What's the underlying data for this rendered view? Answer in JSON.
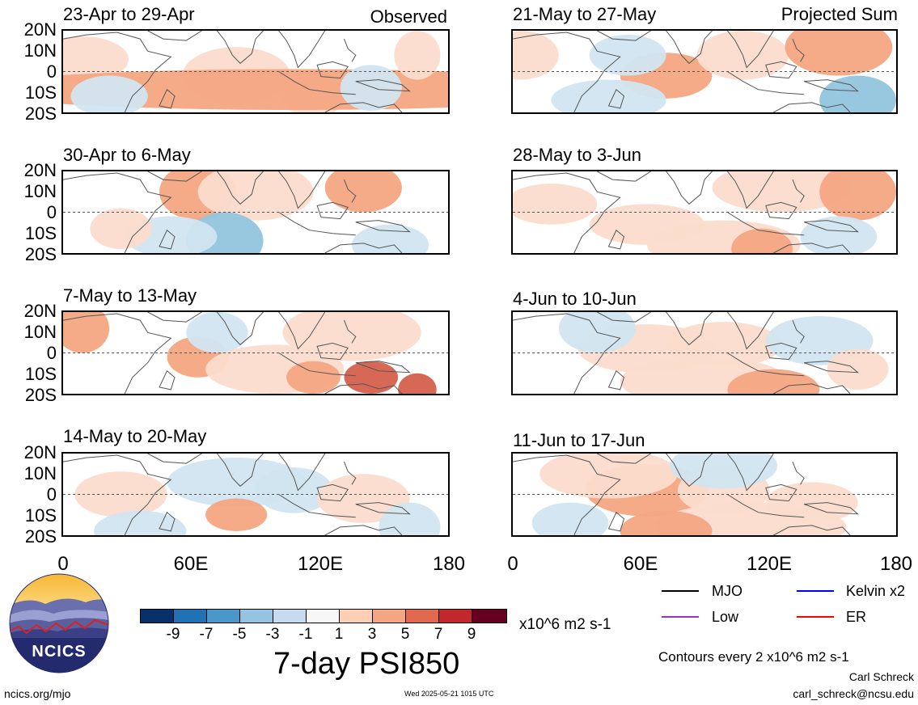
{
  "panels": [
    {
      "title": "23-Apr to 29-Apr",
      "tag": "Observed",
      "pattern": [
        [
          0.05,
          0.35,
          0.12,
          0.28,
          "p1"
        ],
        [
          0.45,
          0.55,
          0.14,
          0.35,
          "p1"
        ],
        [
          0.65,
          0.78,
          0.08,
          0.3,
          "p1"
        ],
        [
          0.6,
          0.72,
          0.85,
          0.25,
          "p2"
        ],
        [
          0.8,
          0.7,
          0.08,
          0.28,
          "n1"
        ],
        [
          0.92,
          0.3,
          0.06,
          0.3,
          "p1"
        ],
        [
          0.12,
          0.8,
          0.1,
          0.25,
          "n1"
        ]
      ]
    },
    {
      "title": "21-May to 27-May",
      "tag": "Projected Sum",
      "pattern": [
        [
          0.02,
          0.3,
          0.1,
          0.3,
          "p1"
        ],
        [
          0.4,
          0.55,
          0.12,
          0.28,
          "p2"
        ],
        [
          0.6,
          0.3,
          0.12,
          0.3,
          "p1"
        ],
        [
          0.3,
          0.3,
          0.1,
          0.25,
          "n1"
        ],
        [
          0.9,
          0.85,
          0.1,
          0.3,
          "n2"
        ],
        [
          0.85,
          0.2,
          0.14,
          0.35,
          "p2"
        ],
        [
          0.25,
          0.85,
          0.15,
          0.25,
          "n1"
        ]
      ]
    },
    {
      "title": "30-Apr to 6-May",
      "tag": "",
      "pattern": [
        [
          0.35,
          0.25,
          0.1,
          0.35,
          "p2"
        ],
        [
          0.78,
          0.2,
          0.1,
          0.3,
          "p2"
        ],
        [
          0.5,
          0.25,
          0.15,
          0.35,
          "p1"
        ],
        [
          0.42,
          0.85,
          0.1,
          0.35,
          "n2"
        ],
        [
          0.28,
          0.8,
          0.12,
          0.25,
          "n1"
        ],
        [
          0.85,
          0.9,
          0.1,
          0.25,
          "n1"
        ],
        [
          0.15,
          0.7,
          0.08,
          0.25,
          "p1"
        ]
      ]
    },
    {
      "title": "28-May to 3-Jun",
      "tag": "",
      "pattern": [
        [
          0.7,
          0.2,
          0.18,
          0.3,
          "p1"
        ],
        [
          0.9,
          0.25,
          0.1,
          0.35,
          "p2"
        ],
        [
          0.35,
          0.65,
          0.15,
          0.25,
          "p1"
        ],
        [
          0.55,
          0.9,
          0.2,
          0.3,
          "p1"
        ],
        [
          0.65,
          0.95,
          0.08,
          0.25,
          "p2"
        ],
        [
          0.85,
          0.8,
          0.1,
          0.25,
          "n1"
        ],
        [
          0.1,
          0.4,
          0.12,
          0.25,
          "p1"
        ]
      ]
    },
    {
      "title": "7-May to 13-May",
      "tag": "",
      "pattern": [
        [
          0.05,
          0.2,
          0.07,
          0.3,
          "p2"
        ],
        [
          0.35,
          0.55,
          0.08,
          0.25,
          "p2"
        ],
        [
          0.55,
          0.7,
          0.18,
          0.3,
          "p1"
        ],
        [
          0.65,
          0.8,
          0.07,
          0.2,
          "p2"
        ],
        [
          0.8,
          0.8,
          0.07,
          0.2,
          "p3"
        ],
        [
          0.92,
          0.95,
          0.05,
          0.2,
          "p3"
        ],
        [
          0.75,
          0.25,
          0.18,
          0.35,
          "p1"
        ],
        [
          0.4,
          0.25,
          0.08,
          0.25,
          "n1"
        ]
      ]
    },
    {
      "title": "4-Jun to 10-Jun",
      "tag": "",
      "pattern": [
        [
          0.35,
          0.45,
          0.18,
          0.3,
          "p1"
        ],
        [
          0.55,
          0.4,
          0.15,
          0.28,
          "p1"
        ],
        [
          0.8,
          0.35,
          0.14,
          0.3,
          "n1"
        ],
        [
          0.5,
          0.85,
          0.22,
          0.3,
          "p1"
        ],
        [
          0.68,
          0.95,
          0.12,
          0.25,
          "p2"
        ],
        [
          0.22,
          0.2,
          0.1,
          0.3,
          "n1"
        ],
        [
          0.9,
          0.7,
          0.08,
          0.25,
          "p1"
        ]
      ]
    },
    {
      "title": "14-May to 20-May",
      "tag": "",
      "pattern": [
        [
          0.45,
          0.35,
          0.18,
          0.3,
          "n1"
        ],
        [
          0.6,
          0.45,
          0.1,
          0.28,
          "n1"
        ],
        [
          0.15,
          0.5,
          0.12,
          0.28,
          "p1"
        ],
        [
          0.45,
          0.75,
          0.08,
          0.2,
          "p2"
        ],
        [
          0.78,
          0.55,
          0.12,
          0.3,
          "p1"
        ],
        [
          0.9,
          0.9,
          0.08,
          0.3,
          "n1"
        ],
        [
          0.2,
          0.95,
          0.12,
          0.25,
          "n1"
        ]
      ]
    },
    {
      "title": "11-Jun to 17-Jun",
      "tag": "",
      "pattern": [
        [
          0.35,
          0.45,
          0.16,
          0.32,
          "p2"
        ],
        [
          0.55,
          0.45,
          0.12,
          0.3,
          "p1"
        ],
        [
          0.62,
          0.9,
          0.25,
          0.3,
          "p1"
        ],
        [
          0.4,
          0.95,
          0.12,
          0.25,
          "p2"
        ],
        [
          0.25,
          0.25,
          0.18,
          0.3,
          "p1"
        ],
        [
          0.55,
          0.15,
          0.14,
          0.28,
          "n1"
        ],
        [
          0.78,
          0.6,
          0.12,
          0.25,
          "p1"
        ],
        [
          0.15,
          0.85,
          0.1,
          0.25,
          "n1"
        ]
      ]
    }
  ],
  "lat_labels": [
    "20N",
    "10N",
    "0",
    "10S",
    "20S"
  ],
  "lon_labels": [
    "0",
    "60E",
    "120E",
    "180"
  ],
  "colorbar": {
    "colors": [
      "#08306b",
      "#2171b5",
      "#4a98c9",
      "#94c4df",
      "#c6dbef",
      "#f7f7f7",
      "#fdd0b6",
      "#f4a582",
      "#e0694f",
      "#c1272d",
      "#67001f"
    ],
    "labels": [
      "-9",
      "-7",
      "-5",
      "-3",
      "-1",
      "1",
      "3",
      "5",
      "7",
      "9"
    ],
    "units": "x10^6 m2 s-1"
  },
  "main_title": "7-day PSI850",
  "legend": [
    {
      "label": "MJO",
      "color": "#000000"
    },
    {
      "label": "Kelvin x2",
      "color": "#0000ff"
    },
    {
      "label": "Low",
      "color": "#9932cc"
    },
    {
      "label": "ER",
      "color": "#ff0000"
    }
  ],
  "contours_note": "Contours every 2 x10^6 m2 s-1",
  "author": "Carl Schreck",
  "email": "carl_schreck@ncsu.edu",
  "site": "ncics.org/mjo",
  "timestamp": "Wed 2025-05-21 1015 UTC",
  "logo_text": "NCICS",
  "fill_colors": {
    "p1": "#fbdccc",
    "p2": "#f4a582",
    "p3": "#d6604d",
    "n1": "#d1e5f0",
    "n2": "#92c5de"
  }
}
